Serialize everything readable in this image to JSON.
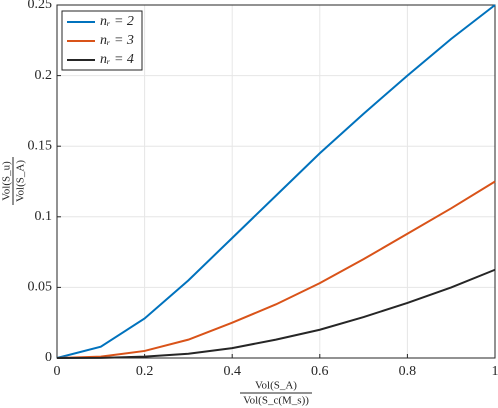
{
  "chart_data": {
    "type": "line",
    "xlabel": {
      "numerator": "Vol(S_A)",
      "denominator": "Vol(S_c(M_s))"
    },
    "ylabel": {
      "numerator": "Vol(S_u)",
      "denominator": "Vol(S_A)"
    },
    "x": [
      0,
      0.1,
      0.2,
      0.3,
      0.4,
      0.5,
      0.6,
      0.7,
      0.8,
      0.9,
      1
    ],
    "series": [
      {
        "name": "nᵣ = 2",
        "color": "#0072bd",
        "values": [
          0,
          0.008,
          0.028,
          0.055,
          0.085,
          0.115,
          0.145,
          0.173,
          0.2,
          0.226,
          0.25
        ]
      },
      {
        "name": "nᵣ = 3",
        "color": "#d95319",
        "values": [
          0,
          0.001,
          0.005,
          0.013,
          0.025,
          0.038,
          0.053,
          0.07,
          0.088,
          0.106,
          0.125
        ]
      },
      {
        "name": "nᵣ = 4",
        "color": "#262626",
        "values": [
          0,
          0.0001,
          0.001,
          0.003,
          0.007,
          0.013,
          0.02,
          0.029,
          0.039,
          0.05,
          0.0625
        ]
      }
    ],
    "xlim": [
      0,
      1
    ],
    "xticks": [
      0,
      0.2,
      0.4,
      0.6,
      0.8,
      1
    ],
    "ylim": [
      0,
      0.25
    ],
    "yticks": [
      0,
      0.05,
      0.1,
      0.15,
      0.2,
      0.25
    ],
    "grid": true,
    "legend": "upper left"
  }
}
